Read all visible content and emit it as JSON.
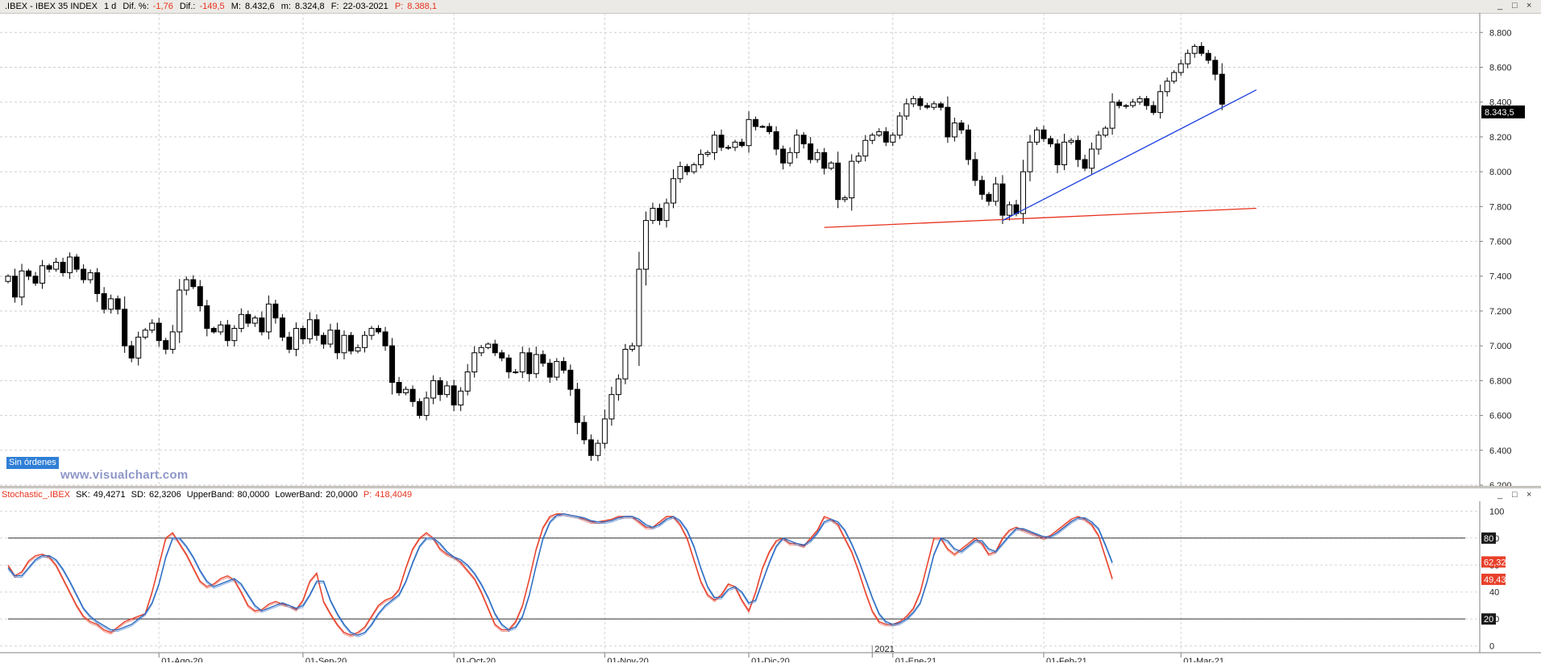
{
  "header": {
    "symbol": ".IBEX - IBEX 35 INDEX",
    "period": "1 d",
    "dif_pct_label": "Dif. %:",
    "dif_pct": "-1,76",
    "dif_label": "Dif.:",
    "dif": "-149,5",
    "max_label": "M:",
    "max": "8.432,6",
    "min_label": "m:",
    "min": "8.324,8",
    "date_label": "F:",
    "date": "22-03-2021",
    "price_label": "P:",
    "price": "8.388,1"
  },
  "window_controls": {
    "minimize": "_",
    "maximize": "□",
    "close": "×"
  },
  "badge": "Sin órdenes",
  "watermark": "www.visualchart.com",
  "stochastic_header": {
    "name": "Stochastic_.IBEX",
    "sk_label": "SK:",
    "sk": "49,4271",
    "sd_label": "SD:",
    "sd": "62,3206",
    "upper_label": "UpperBand:",
    "upper": "80,0000",
    "lower_label": "LowerBand:",
    "lower": "20,0000",
    "p_label": "P:",
    "p": "418,4049"
  },
  "colors": {
    "down": "#000000",
    "up_fill": "#ffffff",
    "red": "#e8311c",
    "blue": "#1c3fe0",
    "sk_line": "#e8402a",
    "sd_line": "#2b6cc4"
  },
  "chart_data": [
    {
      "type": "candlestick",
      "title": "",
      "y_tick_labels": [
        "6.200",
        "6.400",
        "6.600",
        "6.800",
        "7.000",
        "7.200",
        "7.400",
        "7.600",
        "7.800",
        "8.000",
        "8.200",
        "8.400",
        "8.600",
        "8.800"
      ],
      "ylim": [
        6200,
        8880
      ],
      "grid": true,
      "last_price_label": "8.343,5",
      "last_price": 8343.5,
      "x_tick_labels": [
        "01-Ago-20",
        "01-Sep-20",
        "01-Oct-20",
        "01-Nov-20",
        "01-Dic-20",
        "01-Ene-21",
        "01-Feb-21",
        "01-Mar-21"
      ],
      "x_tick_index": [
        22,
        43,
        65,
        87,
        108,
        129,
        151,
        171
      ],
      "year_marker": {
        "label": "2021",
        "index": 126
      },
      "closes": [
        7400,
        7280,
        7430,
        7400,
        7360,
        7460,
        7440,
        7480,
        7420,
        7510,
        7440,
        7380,
        7420,
        7300,
        7210,
        7270,
        7210,
        7000,
        6930,
        7050,
        7090,
        7130,
        7030,
        6980,
        7080,
        7320,
        7380,
        7340,
        7230,
        7100,
        7080,
        7120,
        7030,
        7100,
        7180,
        7130,
        7160,
        7080,
        7240,
        7160,
        7050,
        6980,
        7100,
        7040,
        7150,
        7060,
        7010,
        7090,
        6960,
        7060,
        6970,
        6990,
        7060,
        7100,
        7080,
        7000,
        6790,
        6730,
        6750,
        6680,
        6600,
        6700,
        6800,
        6720,
        6770,
        6660,
        6740,
        6850,
        6960,
        6990,
        7010,
        6960,
        6930,
        6850,
        6850,
        6960,
        6840,
        6950,
        6900,
        6820,
        6910,
        6860,
        6750,
        6560,
        6460,
        6370,
        6440,
        6580,
        6720,
        6810,
        6980,
        7000,
        7440,
        7720,
        7790,
        7720,
        7820,
        7960,
        8030,
        8000,
        8040,
        8100,
        8110,
        8210,
        8140,
        8140,
        8170,
        8150,
        8300,
        8260,
        8260,
        8230,
        8130,
        8050,
        8110,
        8210,
        8160,
        8070,
        8110,
        8020,
        8050,
        7840,
        7850,
        8060,
        8090,
        8180,
        8210,
        8230,
        8170,
        8210,
        8320,
        8390,
        8420,
        8380,
        8370,
        8390,
        8370,
        8200,
        8280,
        8240,
        8070,
        7950,
        7870,
        7830,
        7930,
        7750,
        7810,
        7760,
        8000,
        8170,
        8240,
        8190,
        8160,
        8040,
        8170,
        8180,
        8070,
        8020,
        8130,
        8210,
        8250,
        8400,
        8380,
        8380,
        8400,
        8420,
        8380,
        8340,
        8460,
        8520,
        8570,
        8620,
        8680,
        8720,
        8680,
        8640,
        8560,
        8388
      ],
      "ohlc_sample_last": {
        "open": 8432.6,
        "high": 8432.6,
        "low": 8324.8,
        "close": 8388.1
      },
      "trendlines": [
        {
          "color": "red",
          "from_index": 119,
          "from_value": 7680,
          "to_index": 182,
          "to_value": 7790
        },
        {
          "color": "blue",
          "from_index": 145,
          "from_value": 7720,
          "to_index": 182,
          "to_value": 8470
        }
      ]
    },
    {
      "type": "line",
      "title": "",
      "y_tick_labels": [
        "0",
        "20",
        "40",
        "60",
        "80",
        "100"
      ],
      "ylim": [
        -5,
        102
      ],
      "bands": [
        20,
        80
      ],
      "markers": [
        {
          "label": "80",
          "value": 80
        },
        {
          "label": "62,32",
          "value": 62.32
        },
        {
          "label": "49,43",
          "value": 49.43
        },
        {
          "label": "20",
          "value": 20
        }
      ],
      "x_tick_labels": [
        "01-Ago-20",
        "01-Sep-20",
        "01-Oct-20",
        "01-Nov-20",
        "01-Dic-20",
        "01-Ene-21",
        "01-Feb-21",
        "01-Mar-21"
      ],
      "series": [
        {
          "name": "SK",
          "values": [
            60,
            52,
            55,
            63,
            67,
            68,
            66,
            60,
            50,
            40,
            30,
            22,
            18,
            16,
            12,
            10,
            14,
            18,
            20,
            22,
            24,
            40,
            60,
            80,
            84,
            76,
            68,
            58,
            48,
            44,
            46,
            50,
            52,
            49,
            40,
            30,
            26,
            27,
            31,
            33,
            31,
            30,
            27,
            34,
            48,
            54,
            33,
            24,
            16,
            10,
            8,
            10,
            14,
            22,
            30,
            34,
            36,
            42,
            58,
            72,
            80,
            84,
            80,
            72,
            68,
            66,
            62,
            56,
            50,
            40,
            28,
            16,
            12,
            12,
            18,
            30,
            50,
            72,
            88,
            96,
            98,
            98,
            97,
            96,
            94,
            92,
            92,
            93,
            94,
            96,
            96,
            96,
            92,
            88,
            88,
            92,
            96,
            96,
            90,
            80,
            64,
            48,
            38,
            34,
            38,
            46,
            44,
            34,
            26,
            40,
            58,
            70,
            78,
            80,
            76,
            76,
            74,
            80,
            86,
            96,
            94,
            90,
            80,
            70,
            56,
            40,
            26,
            18,
            16,
            16,
            18,
            22,
            28,
            40,
            60,
            80,
            80,
            72,
            68,
            72,
            76,
            80,
            76,
            68,
            70,
            80,
            86,
            88,
            86,
            84,
            82,
            80,
            82,
            86,
            90,
            94,
            96,
            94,
            90,
            82,
            66,
            50
          ]
        },
        {
          "name": "SD",
          "values": [
            58,
            52,
            52,
            58,
            64,
            67,
            67,
            64,
            57,
            48,
            38,
            28,
            22,
            18,
            15,
            12,
            12,
            14,
            16,
            20,
            24,
            32,
            46,
            66,
            80,
            80,
            74,
            66,
            56,
            48,
            44,
            46,
            48,
            50,
            46,
            38,
            30,
            26,
            28,
            30,
            32,
            30,
            28,
            30,
            38,
            48,
            48,
            34,
            24,
            16,
            10,
            8,
            10,
            16,
            24,
            30,
            34,
            38,
            48,
            62,
            74,
            80,
            80,
            76,
            70,
            66,
            64,
            60,
            54,
            46,
            36,
            24,
            16,
            12,
            14,
            22,
            38,
            60,
            80,
            92,
            97,
            98,
            97,
            96,
            95,
            93,
            92,
            92,
            93,
            95,
            96,
            96,
            94,
            90,
            88,
            90,
            94,
            96,
            93,
            86,
            74,
            58,
            44,
            36,
            36,
            42,
            44,
            40,
            32,
            34,
            48,
            62,
            74,
            80,
            78,
            76,
            75,
            78,
            84,
            92,
            94,
            92,
            86,
            76,
            64,
            50,
            36,
            24,
            18,
            16,
            17,
            20,
            25,
            32,
            48,
            68,
            80,
            78,
            72,
            70,
            74,
            78,
            78,
            72,
            70,
            76,
            82,
            87,
            87,
            85,
            83,
            81,
            81,
            84,
            88,
            92,
            95,
            95,
            92,
            87,
            75,
            62
          ]
        }
      ]
    }
  ]
}
